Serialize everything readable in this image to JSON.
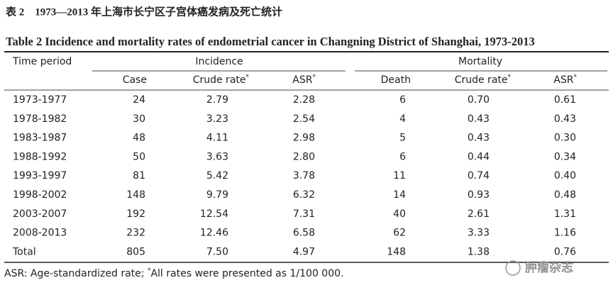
{
  "title_zh": "表 2　1973—2013 年上海市长宁区子宫体癌发病及死亡统计",
  "title_en": "Table 2    Incidence and mortality rates of endometrial cancer in Changning District of Shanghai, 1973-2013",
  "table": {
    "group_headers": {
      "time_period": "Time period",
      "incidence": "Incidence",
      "mortality": "Mortality"
    },
    "columns": [
      {
        "text": "Case",
        "sup": null
      },
      {
        "text": "Crude rate",
        "sup": "*"
      },
      {
        "text": "ASR",
        "sup": "*"
      },
      {
        "text": "Death",
        "sup": null
      },
      {
        "text": "Crude rate",
        "sup": "*"
      },
      {
        "text": "ASR",
        "sup": "*"
      }
    ],
    "rows": [
      [
        "1973-1977",
        "24",
        "2.79",
        "2.28",
        "6",
        "0.70",
        "0.61"
      ],
      [
        "1978-1982",
        "30",
        "3.23",
        "2.54",
        "4",
        "0.43",
        "0.43"
      ],
      [
        "1983-1987",
        "48",
        "4.11",
        "2.98",
        "5",
        "0.43",
        "0.30"
      ],
      [
        "1988-1992",
        "50",
        "3.63",
        "2.80",
        "6",
        "0.44",
        "0.34"
      ],
      [
        "1993-1997",
        "81",
        "5.42",
        "3.78",
        "11",
        "0.74",
        "0.40"
      ],
      [
        "1998-2002",
        "148",
        "9.79",
        "6.32",
        "14",
        "0.93",
        "0.48"
      ],
      [
        "2003-2007",
        "192",
        "12.54",
        "7.31",
        "40",
        "2.61",
        "1.31"
      ],
      [
        "2008-2013",
        "232",
        "12.46",
        "6.58",
        "62",
        "3.33",
        "1.16"
      ],
      [
        "Total",
        "805",
        "7.50",
        "4.97",
        "148",
        "1.38",
        "0.76"
      ]
    ]
  },
  "footnote": {
    "before": "ASR: Age-standardized rate; ",
    "sup": "*",
    "after": "All rates were presented as 1/100 000."
  },
  "watermark": "肿瘤杂志"
}
